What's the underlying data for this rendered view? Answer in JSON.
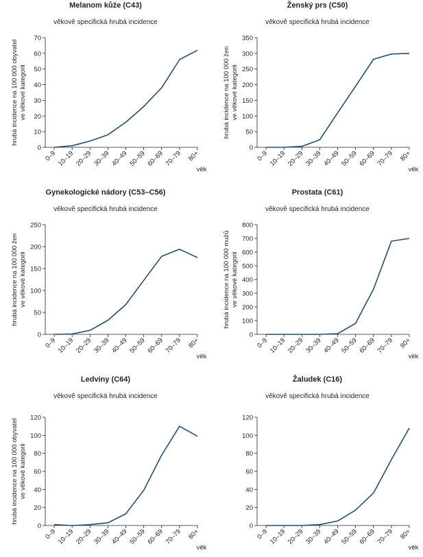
{
  "colors": {
    "series": "#1f4e79",
    "axis": "#231f20"
  },
  "chart_data": [
    {
      "type": "line",
      "title": "Melanom kůže (C43)",
      "subtitle": "věkově specifická hrubá incidence",
      "ylabel_lines": [
        "hrubá incidence na 100 000 obyvatel",
        "ve věkové kategorii"
      ],
      "xlabel": "věk",
      "categories": [
        "0–9",
        "10–19",
        "20–29",
        "30–39",
        "40–49",
        "50–59",
        "60–69",
        "70–79",
        "80+"
      ],
      "yticks": [
        0,
        10,
        20,
        30,
        40,
        50,
        60,
        70
      ],
      "ylim": [
        0,
        70
      ],
      "values": [
        0,
        1,
        4,
        8,
        16,
        26,
        38,
        56,
        62
      ]
    },
    {
      "type": "line",
      "title": "Ženský prs (C50)",
      "subtitle": "věkově specifická hrubá incidence",
      "ylabel_lines": [
        "hrubá incidence na 100 000 žen",
        "ve věkové kategorii"
      ],
      "xlabel": "věk",
      "categories": [
        "0–9",
        "10–19",
        "20–29",
        "30–39",
        "40–49",
        "50–59",
        "60–69",
        "70–79",
        "80+"
      ],
      "yticks": [
        0,
        50,
        100,
        150,
        200,
        250,
        300,
        350
      ],
      "ylim": [
        0,
        350
      ],
      "values": [
        0,
        0,
        3,
        24,
        110,
        195,
        281,
        298,
        300
      ]
    },
    {
      "type": "line",
      "title": "Gynekologické nádory (C53–C56)",
      "subtitle": "věkově specifická hrubá incidence",
      "ylabel_lines": [
        "hrubá incidence na 100 000 žen",
        "ve věkové kategorii"
      ],
      "xlabel": "věk",
      "categories": [
        "0–9",
        "10–19",
        "20–29",
        "30–39",
        "40–49",
        "50–59",
        "60–69",
        "70–79",
        "80+"
      ],
      "yticks": [
        0,
        50,
        100,
        150,
        200,
        250
      ],
      "ylim": [
        0,
        250
      ],
      "values": [
        0,
        1,
        9,
        32,
        68,
        123,
        178,
        194,
        175
      ]
    },
    {
      "type": "line",
      "title": "Prostata (C61)",
      "subtitle": "věkově specifická hrubá incidence",
      "ylabel_lines": [
        "hrubá incidence na 100 000 mužů",
        "ve věkové kategorii"
      ],
      "xlabel": "věk",
      "categories": [
        "0–9",
        "10–19",
        "20–29",
        "30–39",
        "40–49",
        "50–59",
        "60–69",
        "70–79",
        "80+"
      ],
      "yticks": [
        0,
        100,
        200,
        300,
        400,
        500,
        600,
        700,
        800
      ],
      "ylim": [
        0,
        800
      ],
      "values": [
        0,
        0,
        0,
        0,
        5,
        80,
        330,
        680,
        700
      ]
    },
    {
      "type": "line",
      "title": "Ledviny (C64)",
      "subtitle": "věkově specifická hrubá incidence",
      "ylabel_lines": [
        "hrubá incidence na 100 000 obyvatel",
        "ve věkové kategorii"
      ],
      "xlabel": "věk",
      "categories": [
        "0–9",
        "10–19",
        "20–29",
        "30–39",
        "40–49",
        "50–59",
        "60–69",
        "70–79",
        "80+"
      ],
      "yticks": [
        0,
        20,
        40,
        60,
        80,
        100,
        120
      ],
      "ylim": [
        0,
        120
      ],
      "values": [
        1,
        0,
        1,
        3,
        13,
        39,
        78,
        110,
        99
      ]
    },
    {
      "type": "line",
      "title": "Žaludek (C16)",
      "subtitle": "věkově specifická hrubá incidence",
      "ylabel_lines": [],
      "xlabel": "věk",
      "categories": [
        "0–9",
        "10–19",
        "20–29",
        "30–39",
        "40–49",
        "50–59",
        "60–69",
        "70–79",
        "80+"
      ],
      "yticks": [
        0,
        20,
        40,
        60,
        80,
        100,
        120
      ],
      "ylim": [
        0,
        120
      ],
      "values": [
        0,
        0,
        0,
        1,
        5,
        17,
        36,
        73,
        108
      ]
    }
  ]
}
